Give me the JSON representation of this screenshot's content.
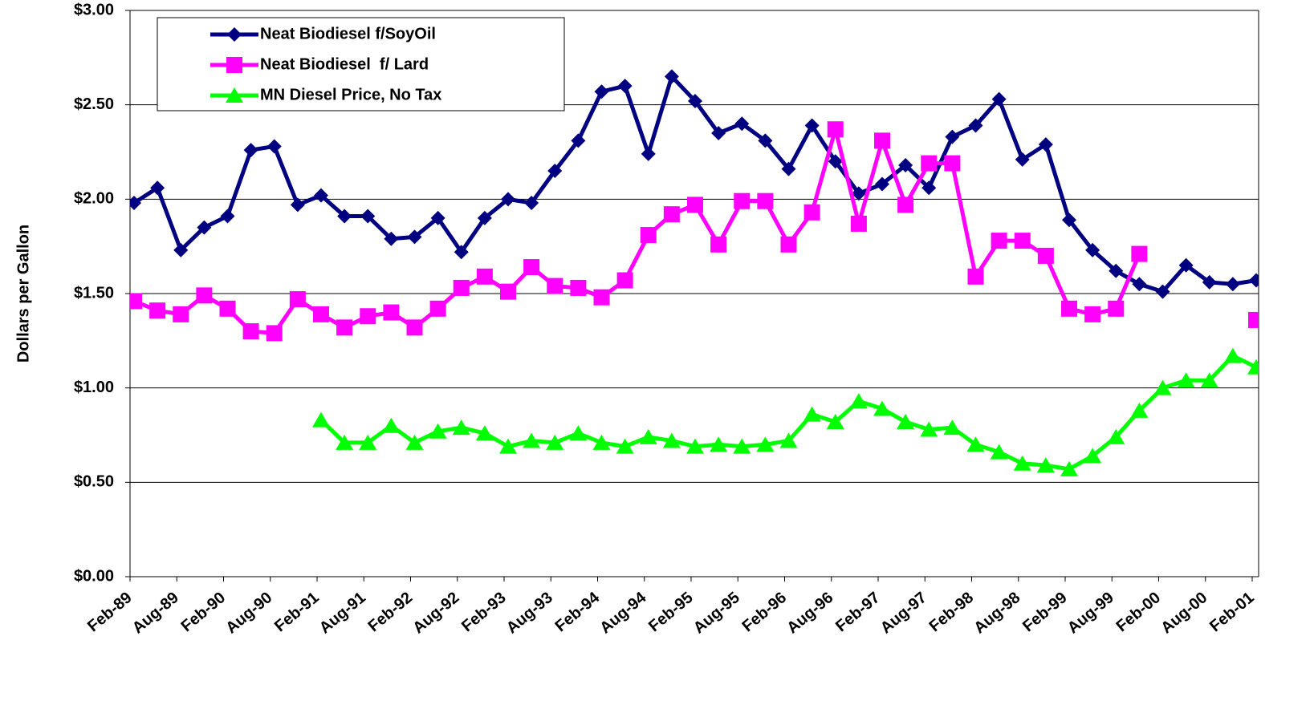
{
  "chart_data": {
    "type": "line",
    "y_label": "Dollars per Gallon",
    "categories": [
      "Feb-89",
      null,
      "Aug-89",
      null,
      "Feb-90",
      null,
      "Aug-90",
      null,
      "Feb-91",
      null,
      "Aug-91",
      null,
      "Feb-92",
      null,
      "Aug-92",
      null,
      "Feb-93",
      null,
      "Aug-93",
      null,
      "Feb-94",
      null,
      "Aug-94",
      null,
      "Feb-95",
      null,
      "Aug-95",
      null,
      "Feb-96",
      null,
      "Aug-96",
      null,
      "Feb-97",
      null,
      "Aug-97",
      null,
      "Feb-98",
      null,
      "Aug-98",
      null,
      "Feb-99",
      null,
      "Aug-99",
      null,
      "Feb-00",
      null,
      "Aug-00",
      null,
      "Feb-01"
    ],
    "series": [
      {
        "name": "Neat Biodiesel f/SoyOil",
        "color": "#000080",
        "marker": "diamond",
        "values": [
          1.98,
          2.06,
          1.73,
          1.85,
          1.91,
          2.26,
          2.28,
          1.97,
          2.02,
          1.91,
          1.91,
          1.79,
          1.8,
          1.9,
          1.72,
          1.9,
          2.0,
          1.98,
          2.15,
          2.31,
          2.57,
          2.6,
          2.24,
          2.65,
          2.52,
          2.35,
          2.4,
          2.31,
          2.16,
          2.39,
          2.2,
          2.03,
          2.08,
          2.18,
          2.06,
          2.33,
          2.39,
          2.53,
          2.21,
          2.29,
          1.89,
          1.73,
          1.62,
          1.55,
          1.51,
          1.65,
          1.56,
          1.55,
          1.57
        ]
      },
      {
        "name": "Neat Biodiesel  f/ Lard",
        "color": "#ff00ff",
        "marker": "square",
        "values": [
          1.46,
          1.41,
          1.39,
          1.49,
          1.42,
          1.3,
          1.29,
          1.47,
          1.39,
          1.32,
          1.38,
          1.4,
          1.32,
          1.42,
          1.53,
          1.59,
          1.51,
          1.64,
          1.54,
          1.53,
          1.48,
          1.57,
          1.81,
          1.92,
          1.97,
          1.76,
          1.99,
          1.99,
          1.76,
          1.93,
          2.37,
          1.87,
          2.31,
          1.97,
          2.19,
          2.19,
          1.59,
          1.78,
          1.78,
          1.7,
          1.42,
          1.39,
          1.42,
          1.71,
          null,
          null,
          null,
          null,
          1.36
        ]
      },
      {
        "name": "MN Diesel Price, No Tax",
        "color": "#00ff00",
        "marker": "triangle",
        "values": [
          null,
          null,
          null,
          null,
          null,
          null,
          null,
          null,
          0.83,
          0.71,
          0.71,
          0.8,
          0.71,
          0.77,
          0.79,
          0.76,
          0.69,
          0.72,
          0.71,
          0.76,
          0.71,
          0.69,
          0.74,
          0.72,
          0.69,
          0.7,
          0.69,
          0.7,
          0.72,
          0.86,
          0.82,
          0.93,
          0.89,
          0.82,
          0.78,
          0.79,
          0.7,
          0.66,
          0.6,
          0.59,
          0.57,
          0.64,
          0.74,
          0.88,
          1.0,
          1.04,
          1.04,
          1.17,
          1.11
        ]
      }
    ],
    "ylim": [
      0,
      3
    ],
    "yticks": [
      {
        "value": 0,
        "label": "$0.00"
      },
      {
        "value": 0.5,
        "label": "$0.50"
      },
      {
        "value": 1,
        "label": "$1.00"
      },
      {
        "value": 1.5,
        "label": "$1.50"
      },
      {
        "value": 2,
        "label": "$2.00"
      },
      {
        "value": 2.5,
        "label": "$2.50"
      },
      {
        "value": 3,
        "label": "$3.00"
      }
    ],
    "grid": true,
    "legend": "upper-left"
  }
}
